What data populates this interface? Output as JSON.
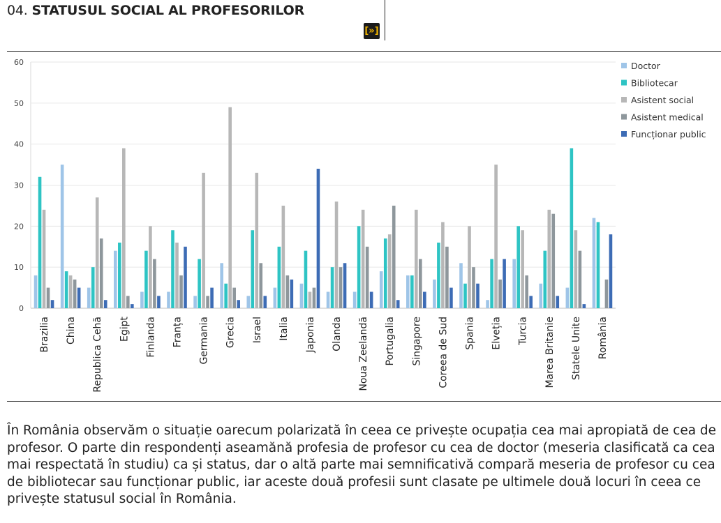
{
  "header": {
    "number": "04.",
    "title": "STATUSUL SOCIAL AL PROFESORILOR",
    "expand_label": "[»]"
  },
  "chart_data": {
    "type": "bar",
    "title": "",
    "xlabel": "",
    "ylabel": "",
    "ylim": [
      0,
      60
    ],
    "yticks": [
      0,
      10,
      20,
      30,
      40,
      50,
      60
    ],
    "grid": true,
    "legend_position": "right",
    "categories": [
      "Brazilia",
      "China",
      "Republica Cehă",
      "Egipt",
      "Finlanda",
      "Franța",
      "Germania",
      "Grecia",
      "Israel",
      "Italia",
      "Japonia",
      "Olanda",
      "Noua Zeelandă",
      "Portugalia",
      "Singapore",
      "Coreea de Sud",
      "Spania",
      "Elveția",
      "Turcia",
      "Marea Britanie",
      "Statele Unite",
      "România"
    ],
    "series": [
      {
        "name": "Doctor",
        "color": "#9fc5e8",
        "values": [
          8,
          35,
          5,
          14,
          4,
          4,
          3,
          11,
          3,
          5,
          6,
          4,
          4,
          9,
          8,
          7,
          11,
          2,
          12,
          6,
          5,
          22
        ]
      },
      {
        "name": "Bibliotecar",
        "color": "#2ec4c4",
        "values": [
          32,
          9,
          10,
          16,
          14,
          19,
          12,
          6,
          19,
          15,
          14,
          10,
          20,
          17,
          8,
          16,
          6,
          12,
          20,
          14,
          39,
          21
        ]
      },
      {
        "name": "Asistent social",
        "color": "#b7b7b7",
        "values": [
          24,
          8,
          27,
          39,
          20,
          16,
          33,
          49,
          33,
          25,
          4,
          26,
          24,
          18,
          24,
          21,
          20,
          35,
          19,
          24,
          19,
          0
        ]
      },
      {
        "name": "Asistent medical",
        "color": "#8e979c",
        "values": [
          5,
          7,
          17,
          3,
          12,
          8,
          3,
          5,
          11,
          8,
          5,
          10,
          15,
          25,
          12,
          15,
          10,
          7,
          8,
          23,
          14,
          7
        ]
      },
      {
        "name": "Funcționar public",
        "color": "#3d6cb5",
        "values": [
          2,
          5,
          2,
          1,
          3,
          15,
          5,
          2,
          3,
          7,
          34,
          11,
          4,
          2,
          4,
          5,
          6,
          12,
          3,
          3,
          1,
          18
        ]
      }
    ]
  },
  "paragraph": "În România observăm o situație oarecum polarizată în ceea ce privește ocupația cea mai apropiată de cea de profesor. O parte din respondenți aseamănă profesia de profesor cu cea de doctor (meseria clasificată ca cea mai respectată în studiu) ca și status, dar o altă parte mai semnificativă compară meseria de profesor cu cea de bibliotecar sau funcționar public, iar aceste două profesii sunt clasate pe ultimele două locuri în ceea ce privește statusul social în România."
}
